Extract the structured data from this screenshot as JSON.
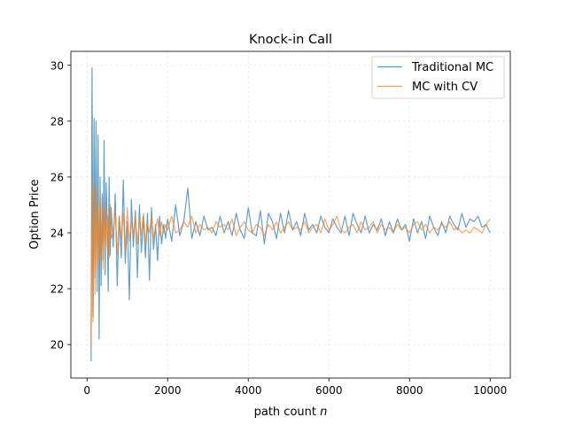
{
  "chart_data": {
    "type": "line",
    "title": "Knock-in Call",
    "xlabel": "path count",
    "xlabel_italic": "n",
    "ylabel": "Option Price",
    "xlim": [
      -400,
      10500
    ],
    "ylim": [
      18.8,
      30.5
    ],
    "xticks": [
      0,
      2000,
      4000,
      6000,
      8000,
      10000
    ],
    "yticks": [
      20,
      22,
      24,
      26,
      28,
      30
    ],
    "grid": true,
    "legend_position": "top-right",
    "series": [
      {
        "name": "Traditional MC",
        "color": "#1f77b4",
        "x": [
          100,
          125,
          150,
          175,
          200,
          225,
          250,
          275,
          300,
          325,
          350,
          375,
          400,
          425,
          450,
          475,
          500,
          525,
          550,
          575,
          600,
          650,
          700,
          750,
          800,
          850,
          900,
          950,
          1000,
          1050,
          1100,
          1150,
          1200,
          1250,
          1300,
          1350,
          1400,
          1450,
          1500,
          1550,
          1600,
          1650,
          1700,
          1750,
          1800,
          1850,
          1900,
          1950,
          2000,
          2100,
          2200,
          2300,
          2400,
          2500,
          2600,
          2700,
          2800,
          2900,
          3000,
          3100,
          3200,
          3300,
          3400,
          3500,
          3600,
          3700,
          3800,
          3900,
          4000,
          4100,
          4200,
          4300,
          4400,
          4500,
          4600,
          4700,
          4800,
          4900,
          5000,
          5100,
          5200,
          5300,
          5400,
          5500,
          5600,
          5700,
          5800,
          5900,
          6000,
          6100,
          6200,
          6300,
          6400,
          6500,
          6600,
          6700,
          6800,
          6900,
          7000,
          7100,
          7200,
          7300,
          7400,
          7500,
          7600,
          7700,
          7800,
          7900,
          8000,
          8100,
          8200,
          8300,
          8400,
          8500,
          8600,
          8700,
          8800,
          8900,
          9000,
          9100,
          9200,
          9300,
          9400,
          9500,
          9600,
          9700,
          9800,
          9900,
          10000
        ],
        "y": [
          19.4,
          29.9,
          21.0,
          28.1,
          22.4,
          28.0,
          21.9,
          27.5,
          20.2,
          26.0,
          22.1,
          25.4,
          23.0,
          27.3,
          22.5,
          25.8,
          24.5,
          21.9,
          26.0,
          23.2,
          24.9,
          23.5,
          25.4,
          22.1,
          24.6,
          23.1,
          25.9,
          22.9,
          24.4,
          21.6,
          25.2,
          23.5,
          24.8,
          22.4,
          25.0,
          23.3,
          24.6,
          23.1,
          24.7,
          22.3,
          24.9,
          23.4,
          24.3,
          23.0,
          24.6,
          23.6,
          24.3,
          23.8,
          24.5,
          23.7,
          25.0,
          23.9,
          24.4,
          25.6,
          23.8,
          24.4,
          23.9,
          24.6,
          24.1,
          24.2,
          23.9,
          24.6,
          24.0,
          24.4,
          23.9,
          24.7,
          24.1,
          23.8,
          24.9,
          24.0,
          23.9,
          24.8,
          23.6,
          24.7,
          24.4,
          23.8,
          24.7,
          24.0,
          24.8,
          24.1,
          24.4,
          23.9,
          24.7,
          24.1,
          24.3,
          24.0,
          24.6,
          24.2,
          24.0,
          24.5,
          24.2,
          24.0,
          24.6,
          23.9,
          24.7,
          24.3,
          24.0,
          24.6,
          24.0,
          24.3,
          24.1,
          24.5,
          23.9,
          24.4,
          24.0,
          24.5,
          24.1,
          24.3,
          23.7,
          24.5,
          24.0,
          24.4,
          23.8,
          24.6,
          24.2,
          23.9,
          24.4,
          24.0,
          24.6,
          24.3,
          24.1,
          24.7,
          24.2,
          24.5,
          24.4,
          24.6,
          24.2,
          24.3,
          24.0
        ]
      },
      {
        "name": "MC with CV",
        "color": "#ff7f0e",
        "x": [
          100,
          125,
          150,
          175,
          200,
          225,
          250,
          275,
          300,
          325,
          350,
          375,
          400,
          425,
          450,
          475,
          500,
          525,
          550,
          575,
          600,
          650,
          700,
          750,
          800,
          850,
          900,
          950,
          1000,
          1050,
          1100,
          1150,
          1200,
          1250,
          1300,
          1350,
          1400,
          1450,
          1500,
          1550,
          1600,
          1650,
          1700,
          1750,
          1800,
          1850,
          1900,
          1950,
          2000,
          2100,
          2200,
          2300,
          2400,
          2500,
          2600,
          2700,
          2800,
          2900,
          3000,
          3100,
          3200,
          3300,
          3400,
          3500,
          3600,
          3700,
          3800,
          3900,
          4000,
          4100,
          4200,
          4300,
          4400,
          4500,
          4600,
          4700,
          4800,
          4900,
          5000,
          5100,
          5200,
          5300,
          5400,
          5500,
          5600,
          5700,
          5800,
          5900,
          6000,
          6100,
          6200,
          6300,
          6400,
          6500,
          6600,
          6700,
          6800,
          6900,
          7000,
          7100,
          7200,
          7300,
          7400,
          7500,
          7600,
          7700,
          7800,
          7900,
          8000,
          8100,
          8200,
          8300,
          8400,
          8500,
          8600,
          8700,
          8800,
          8900,
          9000,
          9100,
          9200,
          9300,
          9400,
          9500,
          9600,
          9700,
          9800,
          9900,
          10000
        ],
        "y": [
          19.9,
          26.0,
          20.8,
          25.6,
          21.8,
          25.7,
          22.6,
          25.0,
          22.9,
          25.3,
          23.1,
          24.8,
          22.7,
          25.0,
          23.4,
          24.9,
          23.5,
          24.6,
          23.1,
          25.0,
          23.8,
          24.1,
          24.8,
          23.2,
          24.6,
          23.8,
          24.7,
          23.3,
          24.9,
          23.7,
          24.4,
          23.9,
          24.6,
          23.6,
          24.5,
          23.9,
          24.7,
          23.6,
          24.3,
          24.0,
          24.6,
          23.8,
          24.2,
          24.5,
          23.9,
          24.4,
          24.0,
          24.3,
          24.1,
          24.6,
          24.0,
          24.1,
          24.4,
          24.2,
          24.6,
          24.0,
          24.3,
          24.1,
          24.2,
          24.0,
          24.4,
          24.2,
          24.3,
          24.1,
          24.5,
          23.9,
          24.2,
          24.4,
          24.1,
          24.0,
          24.3,
          24.2,
          23.9,
          24.3,
          24.1,
          24.4,
          24.0,
          24.2,
          24.4,
          24.1,
          24.2,
          24.1,
          24.4,
          24.0,
          24.2,
          24.3,
          24.0,
          24.5,
          24.1,
          24.3,
          24.6,
          24.1,
          24.0,
          24.2,
          24.3,
          24.0,
          24.4,
          24.1,
          24.2,
          24.4,
          24.0,
          24.3,
          24.1,
          24.2,
          24.0,
          24.3,
          24.1,
          24.2,
          24.0,
          24.3,
          24.4,
          24.1,
          24.3,
          24.0,
          24.2,
          24.1,
          24.3,
          24.2,
          24.4,
          24.1,
          24.2,
          24.0,
          24.1,
          24.0,
          24.2,
          24.1,
          24.0,
          24.3,
          24.5
        ]
      }
    ]
  }
}
